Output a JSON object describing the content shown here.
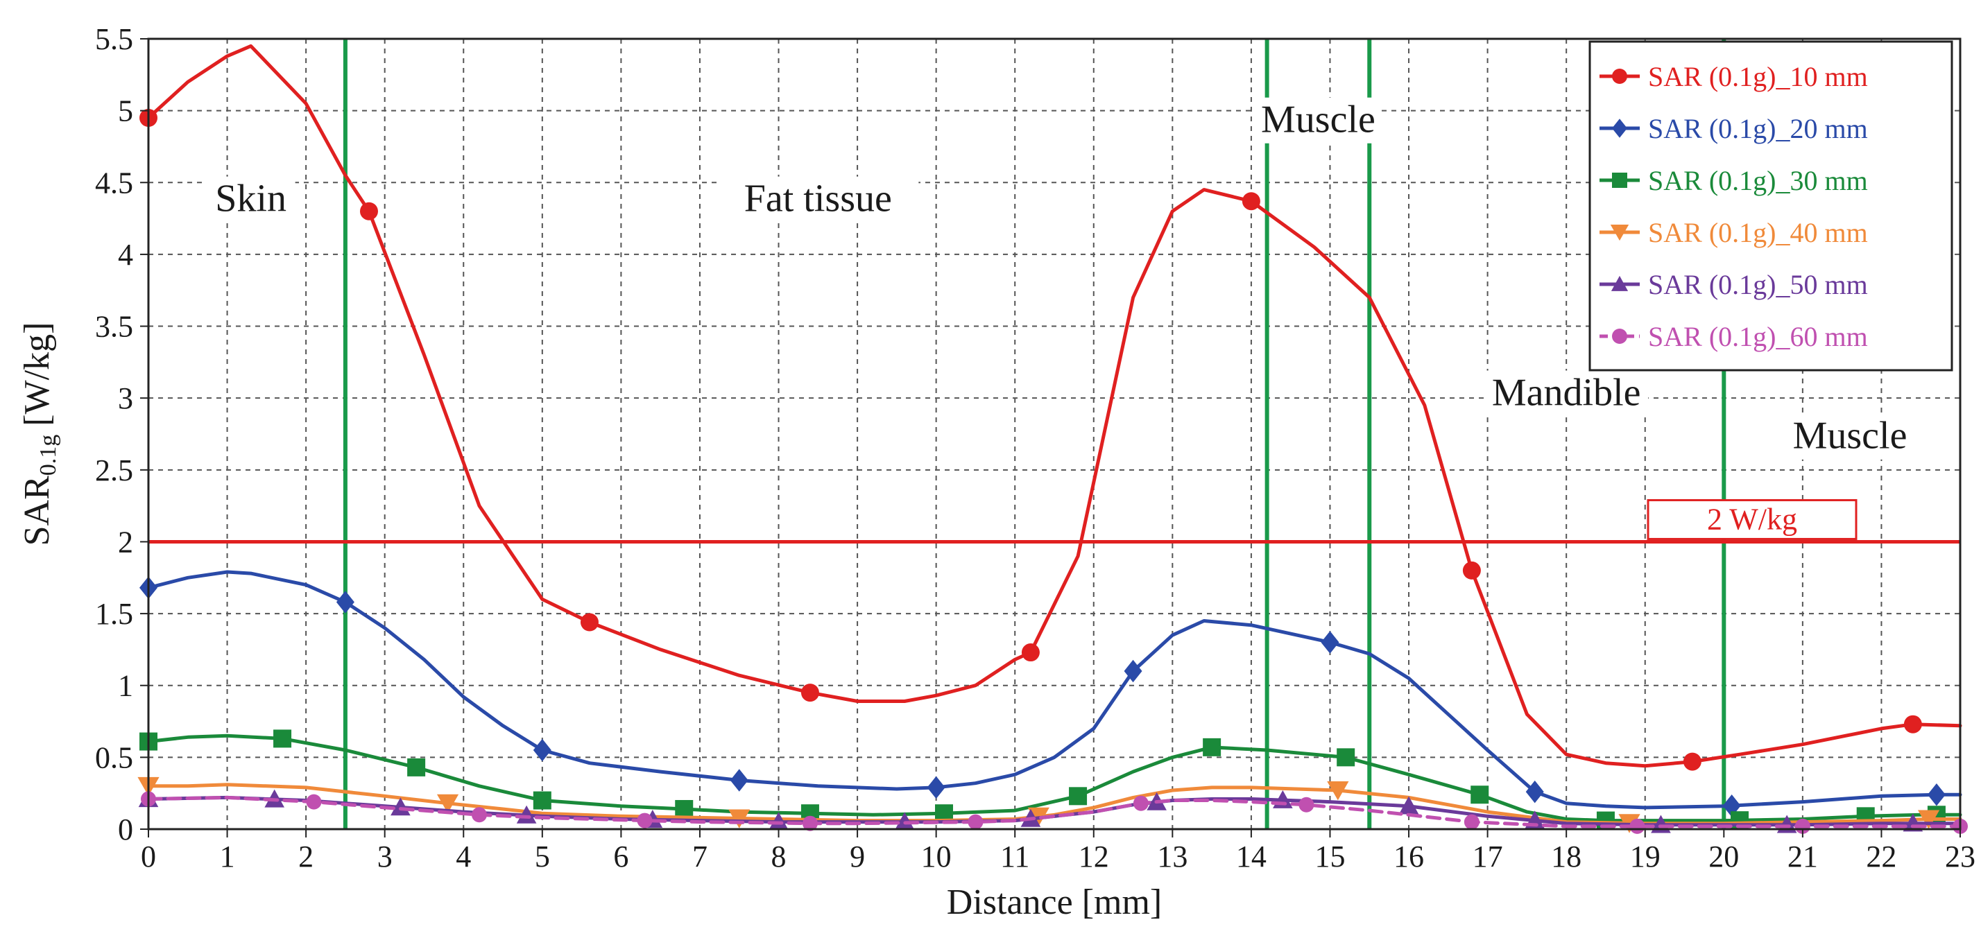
{
  "chart_data": {
    "type": "line",
    "title": "",
    "xlabel": "Distance [mm]",
    "ylabel": {
      "main": "SAR",
      "sub": "0.1g",
      "unit": "[W/kg]"
    },
    "xlim": [
      0,
      23
    ],
    "ylim": [
      0,
      5.5
    ],
    "xticks": [
      0,
      1,
      2,
      3,
      4,
      5,
      6,
      7,
      8,
      9,
      10,
      11,
      12,
      13,
      14,
      15,
      16,
      17,
      18,
      19,
      20,
      21,
      22,
      23
    ],
    "yticks": [
      0,
      0.5,
      1,
      1.5,
      2,
      2.5,
      3,
      3.5,
      4,
      4.5,
      5,
      5.5
    ],
    "grid": true,
    "legend_position": "top-right",
    "threshold": {
      "value": 2,
      "label": "2 W/kg",
      "color": "#e02020"
    },
    "boundaries": {
      "x": [
        2.5,
        14.2,
        15.5,
        20
      ],
      "color": "#1a9a4a"
    },
    "region_labels": [
      {
        "text": "Skin",
        "x": 1.3,
        "y": 4.3
      },
      {
        "text": "Fat tissue",
        "x": 8.5,
        "y": 4.3
      },
      {
        "text": "Muscle",
        "x": 14.85,
        "y": 4.85
      },
      {
        "text": "Mandible",
        "x": 18.0,
        "y": 2.95
      },
      {
        "text": "Muscle",
        "x": 21.6,
        "y": 2.65
      }
    ],
    "series": [
      {
        "name": "SAR (0.1g)_10 mm",
        "color": "#e02020",
        "marker": "circle",
        "dash": false,
        "x": [
          0,
          0.5,
          1.0,
          1.3,
          2.0,
          2.5,
          2.8,
          3.5,
          4.2,
          5.0,
          5.6,
          6.5,
          7.5,
          8.4,
          9.0,
          9.6,
          10.0,
          10.5,
          11.0,
          11.2,
          11.8,
          12.5,
          13.0,
          13.4,
          14.0,
          14.8,
          15.5,
          16.2,
          16.8,
          17.5,
          18.0,
          18.5,
          19.0,
          19.6,
          20.2,
          21.0,
          22.0,
          22.4,
          23.0
        ],
        "y": [
          4.95,
          5.2,
          5.38,
          5.45,
          5.05,
          4.55,
          4.3,
          3.3,
          2.25,
          1.6,
          1.44,
          1.25,
          1.07,
          0.95,
          0.89,
          0.89,
          0.93,
          1.0,
          1.18,
          1.23,
          1.9,
          3.7,
          4.3,
          4.45,
          4.37,
          4.05,
          3.7,
          2.95,
          1.8,
          0.8,
          0.52,
          0.46,
          0.44,
          0.47,
          0.52,
          0.59,
          0.7,
          0.73,
          0.72
        ],
        "markers_x": [
          0,
          2.8,
          5.6,
          8.4,
          11.2,
          14.0,
          16.8,
          19.6,
          22.4
        ]
      },
      {
        "name": "SAR (0.1g)_20 mm",
        "color": "#2a4aa8",
        "marker": "diamond",
        "dash": false,
        "x": [
          0,
          0.5,
          1.0,
          1.3,
          2.0,
          2.5,
          3.0,
          3.5,
          4.0,
          4.5,
          5.0,
          5.6,
          6.5,
          7.5,
          8.5,
          9.5,
          10.0,
          10.5,
          11.0,
          11.5,
          12.0,
          12.5,
          13.0,
          13.4,
          14.0,
          15.0,
          15.5,
          16.0,
          16.5,
          17.0,
          17.6,
          18.0,
          18.5,
          19.0,
          20.0,
          21.0,
          22.0,
          22.7,
          23.0
        ],
        "y": [
          1.68,
          1.75,
          1.79,
          1.78,
          1.7,
          1.58,
          1.4,
          1.18,
          0.92,
          0.72,
          0.55,
          0.46,
          0.4,
          0.34,
          0.3,
          0.28,
          0.29,
          0.32,
          0.38,
          0.5,
          0.7,
          1.1,
          1.35,
          1.45,
          1.42,
          1.3,
          1.22,
          1.05,
          0.8,
          0.55,
          0.26,
          0.18,
          0.16,
          0.15,
          0.16,
          0.19,
          0.23,
          0.24,
          0.24
        ],
        "markers_x": [
          0,
          2.5,
          5.0,
          7.5,
          10.0,
          12.5,
          15.0,
          17.6,
          20.1,
          22.7
        ]
      },
      {
        "name": "SAR (0.1g)_30 mm",
        "color": "#1a8a3a",
        "marker": "square",
        "dash": false,
        "x": [
          0,
          0.5,
          1.0,
          1.7,
          2.5,
          3.4,
          4.2,
          5.0,
          6.0,
          6.8,
          7.5,
          8.4,
          9.2,
          10.1,
          11.0,
          11.8,
          12.5,
          13.0,
          13.5,
          14.2,
          15.2,
          16.0,
          16.9,
          17.5,
          18.0,
          18.5,
          19.0,
          20.0,
          21.0,
          21.8,
          22.5,
          23.0
        ],
        "y": [
          0.61,
          0.64,
          0.65,
          0.63,
          0.55,
          0.43,
          0.3,
          0.2,
          0.16,
          0.14,
          0.12,
          0.11,
          0.1,
          0.11,
          0.13,
          0.23,
          0.4,
          0.5,
          0.57,
          0.55,
          0.5,
          0.38,
          0.24,
          0.12,
          0.07,
          0.06,
          0.06,
          0.06,
          0.07,
          0.09,
          0.1,
          0.1
        ],
        "markers_x": [
          0,
          1.7,
          3.4,
          5.0,
          6.8,
          8.4,
          10.1,
          11.8,
          13.5,
          15.2,
          16.9,
          18.5,
          20.2,
          21.8,
          22.7
        ]
      },
      {
        "name": "SAR (0.1g)_40 mm",
        "color": "#f08a3a",
        "marker": "triangle-down",
        "dash": false,
        "x": [
          0,
          0.5,
          1.0,
          2.0,
          3.0,
          3.8,
          4.5,
          5.0,
          6.0,
          7.0,
          8.0,
          9.0,
          10.0,
          11.0,
          11.5,
          12.0,
          12.5,
          13.0,
          13.5,
          14.0,
          15.1,
          16.0,
          17.0,
          18.0,
          19.0,
          20.0,
          21.0,
          22.0,
          22.6,
          23.0
        ],
        "y": [
          0.3,
          0.3,
          0.31,
          0.29,
          0.23,
          0.18,
          0.14,
          0.11,
          0.09,
          0.08,
          0.07,
          0.06,
          0.06,
          0.07,
          0.1,
          0.15,
          0.22,
          0.27,
          0.29,
          0.29,
          0.27,
          0.22,
          0.12,
          0.05,
          0.04,
          0.04,
          0.05,
          0.06,
          0.07,
          0.07
        ],
        "markers_x": [
          0,
          3.8,
          7.5,
          11.3,
          15.1,
          18.8,
          22.6
        ]
      },
      {
        "name": "SAR (0.1g)_50 mm",
        "color": "#6a3a9a",
        "marker": "triangle-up",
        "dash": false,
        "x": [
          0,
          1.0,
          2.0,
          3.0,
          4.0,
          5.0,
          6.0,
          7.0,
          8.0,
          9.0,
          10.0,
          11.0,
          12.0,
          12.5,
          13.0,
          13.5,
          14.0,
          15.0,
          16.0,
          17.0,
          18.0,
          19.0,
          20.0,
          21.0,
          22.0,
          23.0
        ],
        "y": [
          0.21,
          0.22,
          0.2,
          0.16,
          0.12,
          0.09,
          0.07,
          0.06,
          0.05,
          0.05,
          0.05,
          0.06,
          0.12,
          0.17,
          0.2,
          0.21,
          0.21,
          0.19,
          0.16,
          0.09,
          0.04,
          0.03,
          0.03,
          0.03,
          0.04,
          0.04
        ],
        "markers_x": [
          0,
          1.6,
          3.2,
          4.8,
          6.4,
          8.0,
          9.6,
          11.2,
          12.8,
          14.4,
          16.0,
          17.6,
          19.2,
          20.8,
          22.4
        ]
      },
      {
        "name": "SAR (0.1g)_60 mm",
        "color": "#c050b0",
        "marker": "circle",
        "dash": true,
        "x": [
          0,
          1.0,
          2.1,
          3.0,
          4.2,
          5.0,
          6.3,
          7.0,
          8.4,
          9.0,
          10.5,
          11.0,
          12.0,
          12.6,
          13.0,
          13.5,
          14.0,
          14.7,
          15.5,
          16.0,
          16.8,
          18.0,
          18.9,
          20.0,
          21.0,
          22.0,
          23.0
        ],
        "y": [
          0.21,
          0.22,
          0.19,
          0.15,
          0.1,
          0.08,
          0.06,
          0.05,
          0.04,
          0.04,
          0.05,
          0.06,
          0.12,
          0.18,
          0.2,
          0.2,
          0.19,
          0.17,
          0.13,
          0.1,
          0.05,
          0.02,
          0.02,
          0.02,
          0.02,
          0.02,
          0.02
        ],
        "markers_x": [
          0,
          2.1,
          4.2,
          6.3,
          8.4,
          10.5,
          12.6,
          14.7,
          16.8,
          18.9,
          21.0,
          23.0
        ]
      }
    ]
  }
}
